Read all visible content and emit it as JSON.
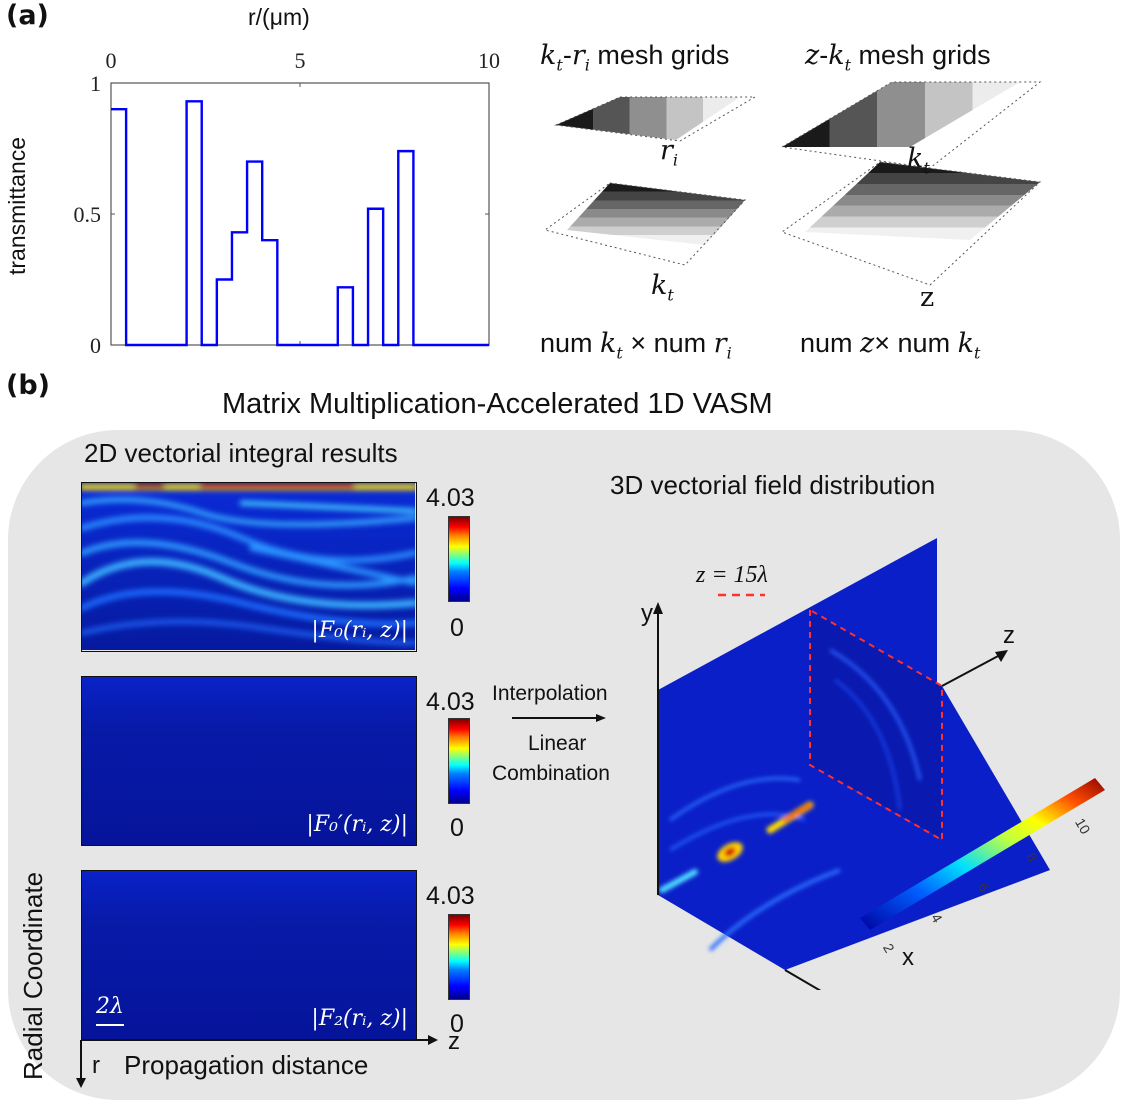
{
  "panel_a": {
    "label": "(a)",
    "chart_data": {
      "type": "line",
      "step": true,
      "title": "",
      "xlabel": "r/(μm)",
      "ylabel": "transmittance",
      "xlim": [
        0,
        10
      ],
      "ylim": [
        0,
        1
      ],
      "xticks": [
        "0",
        "5",
        "10"
      ],
      "yticks": [
        "0",
        "0.5",
        "1"
      ],
      "x_axis_position": "top",
      "grid": false,
      "series": [
        {
          "name": "transmittance",
          "color": "#0000ff",
          "segments": [
            {
              "r_start": 0.0,
              "r_end": 0.4,
              "value": 0.9
            },
            {
              "r_start": 0.4,
              "r_end": 2.0,
              "value": 0.0
            },
            {
              "r_start": 2.0,
              "r_end": 2.4,
              "value": 0.93
            },
            {
              "r_start": 2.4,
              "r_end": 2.8,
              "value": 0.0
            },
            {
              "r_start": 2.8,
              "r_end": 3.2,
              "value": 0.25
            },
            {
              "r_start": 3.2,
              "r_end": 3.6,
              "value": 0.43
            },
            {
              "r_start": 3.6,
              "r_end": 4.0,
              "value": 0.7
            },
            {
              "r_start": 4.0,
              "r_end": 4.4,
              "value": 0.4
            },
            {
              "r_start": 4.4,
              "r_end": 6.0,
              "value": 0.0
            },
            {
              "r_start": 6.0,
              "r_end": 6.4,
              "value": 0.22
            },
            {
              "r_start": 6.4,
              "r_end": 6.8,
              "value": 0.0
            },
            {
              "r_start": 6.8,
              "r_end": 7.2,
              "value": 0.52
            },
            {
              "r_start": 7.2,
              "r_end": 7.6,
              "value": 0.0
            },
            {
              "r_start": 7.6,
              "r_end": 8.0,
              "value": 0.74
            },
            {
              "r_start": 8.0,
              "r_end": 10.0,
              "value": 0.0
            }
          ]
        }
      ]
    },
    "mesh_grids": [
      {
        "title_a": "k",
        "title_a_sub": "t",
        "title_sep": "-",
        "title_b": "r",
        "title_b_sub": "i",
        "title_rest": " mesh grids",
        "var": "r",
        "var_sub": "i"
      },
      {
        "title_a": "z",
        "title_a_sub": "",
        "title_sep": "-",
        "title_b": "k",
        "title_b_sub": "t",
        "title_rest": " mesh grids",
        "var": "k",
        "var_sub": "t"
      }
    ],
    "mesh_grids_bottom": [
      {
        "var": "k",
        "var_sub": "t",
        "foot": [
          "num ",
          "k",
          "t",
          " × num ",
          "r",
          "i"
        ]
      },
      {
        "var": "z",
        "var_sub": "",
        "foot": [
          "num ",
          "z",
          "",
          "× num ",
          "k",
          "t"
        ]
      }
    ]
  },
  "panel_b": {
    "label": "(b)",
    "title": "Matrix Multiplication-Accelerated 1D VASM",
    "left_title": "2D vectorial integral results",
    "right_title": "3D vectorial field distribution",
    "heatmaps": [
      {
        "label": "|F₀(rᵢ, z)|",
        "cbar_max": "4.03",
        "cbar_min": "0",
        "intensity": "high"
      },
      {
        "label": "|F₀′(rᵢ, z)|",
        "cbar_max": "4.03",
        "cbar_min": "0",
        "intensity": "low"
      },
      {
        "label": "|F₂(rᵢ, z)|",
        "cbar_max": "4.03",
        "cbar_min": "0",
        "intensity": "low"
      }
    ],
    "scale_bar": "2λ",
    "axis_r": "r",
    "axis_z": "z",
    "xlabel": "Propagation distance",
    "ylabel": "Radial Coordinate",
    "arrow_top": "Interpolation",
    "arrow_bottom_1": "Linear",
    "arrow_bottom_2": "Combination",
    "plane_label": "z = 15λ",
    "axes_3d": {
      "y": "y",
      "z": "z",
      "x": "x"
    },
    "cbar_3d_ticks": [
      "2",
      "4",
      "6",
      "8",
      "10"
    ]
  }
}
